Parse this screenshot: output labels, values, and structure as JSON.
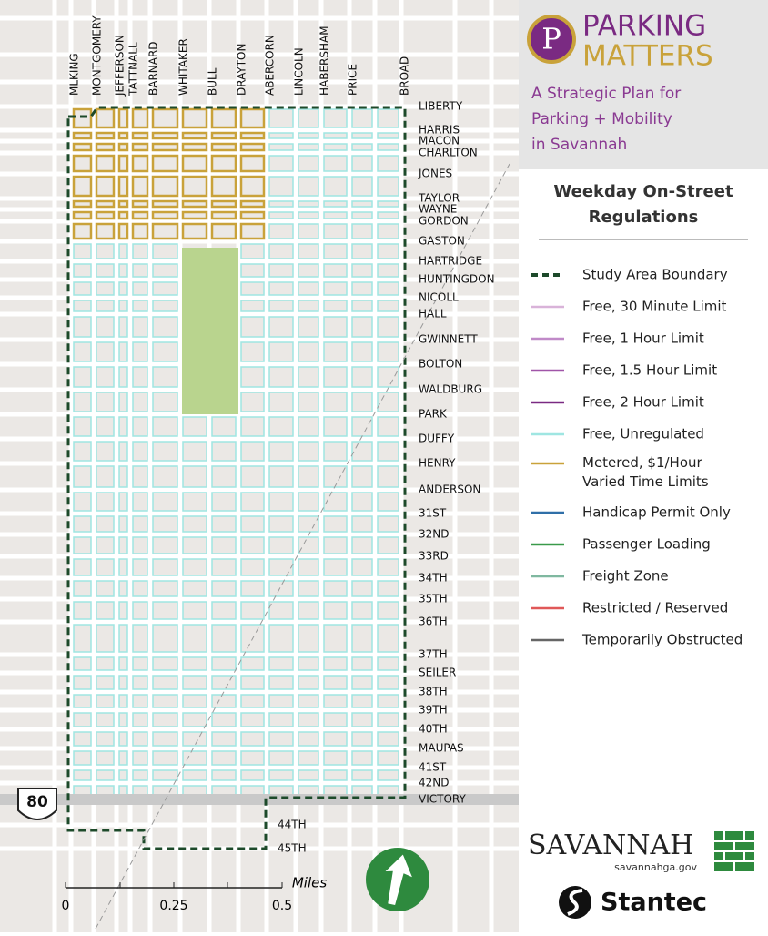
{
  "header": {
    "logo_letter": "P",
    "title_line1": "PARKING",
    "title_line2": "MATTERS",
    "subtitle": [
      "A Strategic Plan for",
      "Parking + Mobility",
      "in Savannah"
    ]
  },
  "legend": {
    "title": [
      "Weekday On-Street",
      "Regulations"
    ],
    "items": [
      {
        "label": [
          "Study Area Boundary"
        ],
        "color": "#1d4a2a",
        "style": "dashed"
      },
      {
        "label": [
          "Free, 30 Minute Limit"
        ],
        "color": "#d9b3d9",
        "style": "solid"
      },
      {
        "label": [
          "Free, 1 Hour Limit"
        ],
        "color": "#c08ac8",
        "style": "solid"
      },
      {
        "label": [
          "Free, 1.5 Hour Limit"
        ],
        "color": "#a055a8",
        "style": "solid"
      },
      {
        "label": [
          "Free, 2 Hour Limit"
        ],
        "color": "#7a2a82",
        "style": "solid"
      },
      {
        "label": [
          "Free, Unregulated"
        ],
        "color": "#9fe6e2",
        "style": "solid"
      },
      {
        "label": [
          "Metered, $1/Hour",
          "Varied Time Limits"
        ],
        "color": "#c9a23a",
        "style": "solid"
      },
      {
        "label": [
          "Handicap Permit Only"
        ],
        "color": "#2f6fa8",
        "style": "solid"
      },
      {
        "label": [
          "Passenger Loading"
        ],
        "color": "#3a9a4a",
        "style": "solid"
      },
      {
        "label": [
          "Freight Zone"
        ],
        "color": "#7fb8a0",
        "style": "solid"
      },
      {
        "label": [
          "Restricted / Reserved"
        ],
        "color": "#e05858",
        "style": "solid"
      },
      {
        "label": [
          "Temporarily Obstructed"
        ],
        "color": "#666666",
        "style": "solid"
      }
    ]
  },
  "map": {
    "north_south_streets": [
      "MLKING",
      "MONTGOMERY",
      "JEFFERSON",
      "TATTNALL",
      "BARNARD",
      "WHITAKER",
      "BULL",
      "DRAYTON",
      "ABERCORN",
      "LINCOLN",
      "HABERSHAM",
      "PRICE",
      "BROAD"
    ],
    "east_west_streets": [
      "LIBERTY",
      "HARRIS",
      "MACON",
      "CHARLTON",
      "JONES",
      "TAYLOR",
      "WAYNE",
      "GORDON",
      "GASTON",
      "HARTRIDGE",
      "HUNTINGDON",
      "NICOLL",
      "HALL",
      "GWINNETT",
      "BOLTON",
      "WALDBURG",
      "PARK",
      "DUFFY",
      "HENRY",
      "ANDERSON",
      "31ST",
      "32ND",
      "33RD",
      "34TH",
      "35TH",
      "36TH",
      "37TH",
      "SEILER",
      "38TH",
      "39TH",
      "40TH",
      "MAUPAS",
      "41ST",
      "42ND",
      "VICTORY"
    ],
    "south_streets": [
      "44TH",
      "45TH"
    ],
    "highway_shield": "80"
  },
  "scale": {
    "unit": "Miles",
    "labels": [
      "0",
      "0.25",
      "0.5"
    ]
  },
  "logos": {
    "city": "SAVANNAH",
    "city_url": "savannahga.gov",
    "firm": "Stantec"
  }
}
